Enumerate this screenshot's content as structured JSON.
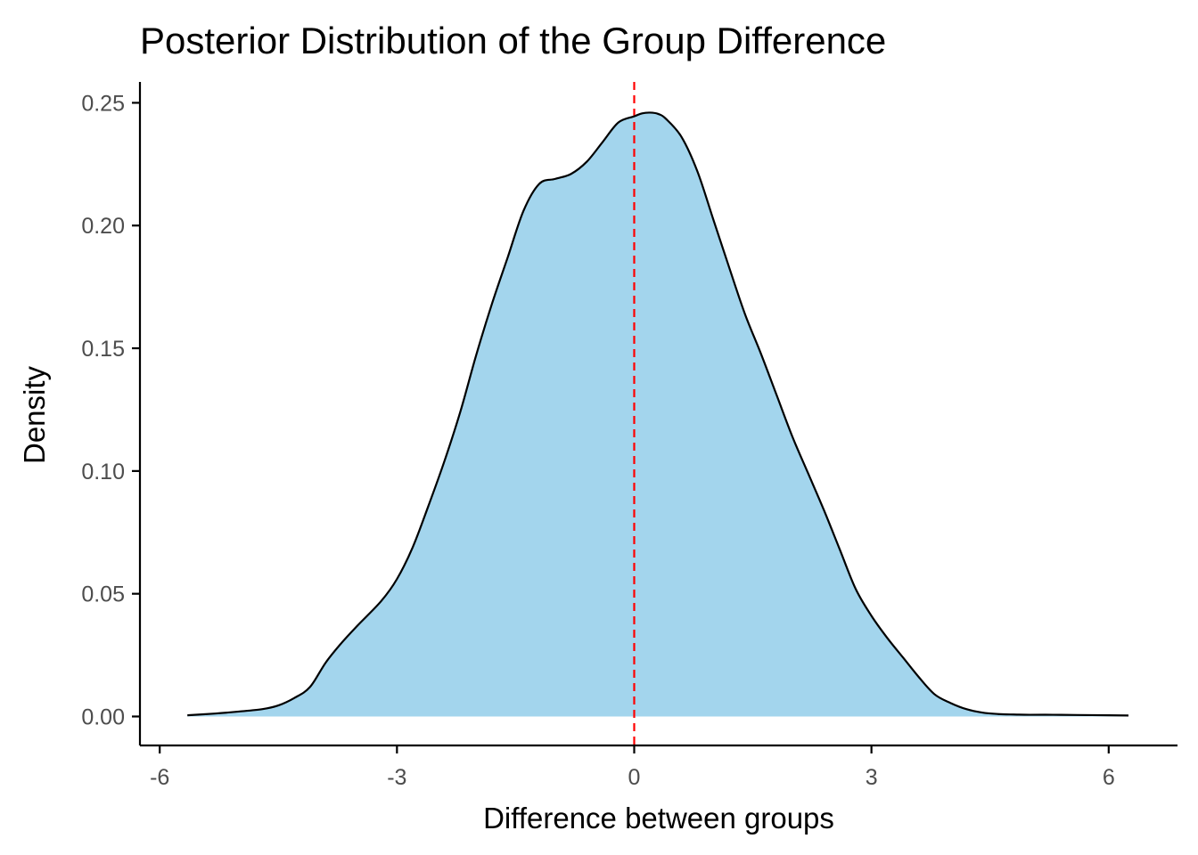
{
  "chart_data": {
    "type": "area",
    "title": "Posterior Distribution of the Group Difference",
    "xlabel": "Difference between groups",
    "ylabel": "Density",
    "xlim": [
      -6.25,
      6.87
    ],
    "ylim": [
      -0.0118,
      0.2585
    ],
    "x_ticks": [
      -6,
      -3,
      0,
      3,
      6
    ],
    "x_tick_labels": [
      "-6",
      "-3",
      "0",
      "3",
      "6"
    ],
    "y_ticks": [
      0.0,
      0.05,
      0.1,
      0.15,
      0.2,
      0.25
    ],
    "y_tick_labels": [
      "0.00",
      "0.05",
      "0.10",
      "0.15",
      "0.20",
      "0.25"
    ],
    "grid": false,
    "legend": "none",
    "fill_color": "#a3d5ed",
    "line_color": "#000000",
    "reference_line": {
      "x": 0,
      "color": "#ff0000",
      "style": "dashed"
    },
    "series": [
      {
        "x": [
          -5.65,
          -5.3,
          -5.0,
          -4.7,
          -4.5,
          -4.3,
          -4.1,
          -3.9,
          -3.7,
          -3.5,
          -3.2,
          -3.0,
          -2.8,
          -2.6,
          -2.4,
          -2.2,
          -2.0,
          -1.8,
          -1.6,
          -1.4,
          -1.2,
          -1.0,
          -0.8,
          -0.6,
          -0.4,
          -0.2,
          0.0,
          0.1,
          0.2,
          0.3,
          0.4,
          0.6,
          0.8,
          1.0,
          1.2,
          1.4,
          1.6,
          1.8,
          2.0,
          2.2,
          2.4,
          2.6,
          2.8,
          3.0,
          3.2,
          3.4,
          3.6,
          3.8,
          4.0,
          4.2,
          4.4,
          4.6,
          4.8,
          5.0,
          5.3,
          5.6,
          6.0,
          6.25
        ],
        "y": [
          0.0005,
          0.0012,
          0.002,
          0.003,
          0.0045,
          0.0075,
          0.012,
          0.022,
          0.03,
          0.037,
          0.047,
          0.056,
          0.069,
          0.086,
          0.104,
          0.124,
          0.147,
          0.168,
          0.187,
          0.206,
          0.217,
          0.219,
          0.221,
          0.226,
          0.234,
          0.242,
          0.2445,
          0.2457,
          0.246,
          0.2455,
          0.2435,
          0.236,
          0.222,
          0.2025,
          0.183,
          0.164,
          0.148,
          0.131,
          0.114,
          0.099,
          0.084,
          0.068,
          0.052,
          0.041,
          0.032,
          0.024,
          0.016,
          0.009,
          0.0055,
          0.003,
          0.0016,
          0.001,
          0.0008,
          0.0007,
          0.0007,
          0.0006,
          0.0005,
          0.0004
        ]
      }
    ]
  }
}
